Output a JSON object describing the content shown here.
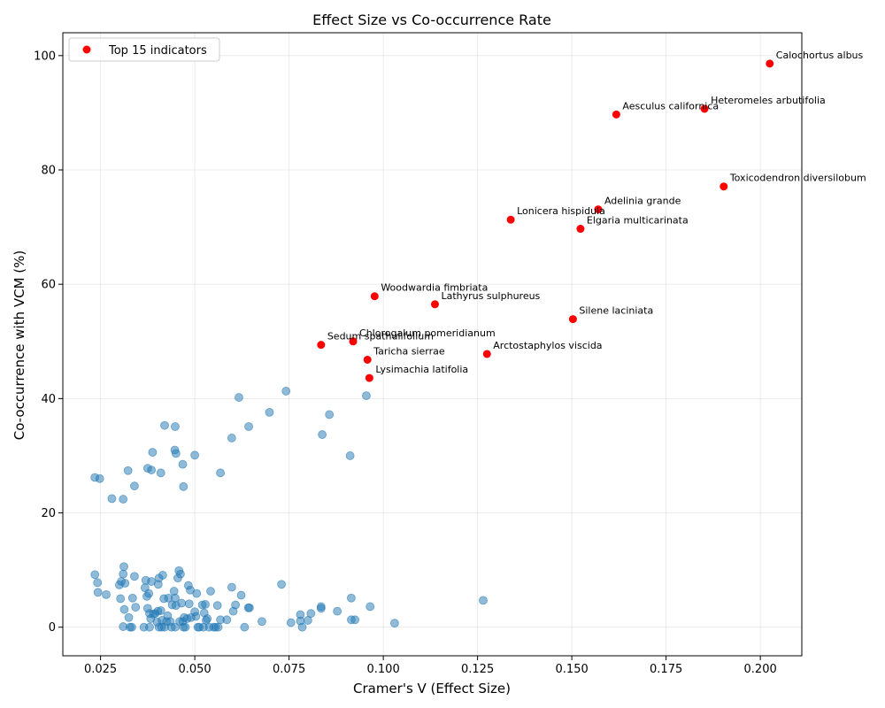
{
  "chart_data": {
    "type": "scatter",
    "title": "Effect Size vs Co-occurrence Rate",
    "xlabel": "Cramer's V (Effect Size)",
    "ylabel": "Co-occurrence with VCM (%)",
    "xlim": [
      0.015,
      0.211
    ],
    "ylim": [
      -5,
      104
    ],
    "xticks": [
      0.025,
      0.05,
      0.075,
      0.1,
      0.125,
      0.15,
      0.175,
      0.2
    ],
    "xtick_labels": [
      "0.025",
      "0.050",
      "0.075",
      "0.100",
      "0.125",
      "0.150",
      "0.175",
      "0.200"
    ],
    "yticks": [
      0,
      20,
      40,
      60,
      80,
      100
    ],
    "ytick_labels": [
      "0",
      "20",
      "40",
      "60",
      "80",
      "100"
    ],
    "grid": true,
    "legend": {
      "placement": "top-left",
      "entries": [
        "Top 15 indicators"
      ]
    },
    "colors": {
      "other": "#1f77b4",
      "top": "#ff0000"
    },
    "series": [
      {
        "name": "",
        "color": "#1f77b4",
        "points": [
          [
            0.0235,
            26.2
          ],
          [
            0.0248,
            26.0
          ],
          [
            0.028,
            22.5
          ],
          [
            0.031,
            22.4
          ],
          [
            0.0323,
            27.4
          ],
          [
            0.034,
            24.7
          ],
          [
            0.0375,
            27.8
          ],
          [
            0.0385,
            27.5
          ],
          [
            0.0388,
            30.6
          ],
          [
            0.041,
            27.0
          ],
          [
            0.042,
            35.3
          ],
          [
            0.0447,
            31.0
          ],
          [
            0.0448,
            35.1
          ],
          [
            0.045,
            30.4
          ],
          [
            0.0468,
            28.5
          ],
          [
            0.047,
            24.6
          ],
          [
            0.05,
            30.1
          ],
          [
            0.0568,
            27.0
          ],
          [
            0.0598,
            33.1
          ],
          [
            0.0617,
            40.2
          ],
          [
            0.0643,
            35.1
          ],
          [
            0.0698,
            37.6
          ],
          [
            0.0742,
            41.3
          ],
          [
            0.0838,
            33.7
          ],
          [
            0.0857,
            37.2
          ],
          [
            0.0912,
            30.0
          ],
          [
            0.0955,
            40.5
          ],
          [
            0.0235,
            9.2
          ],
          [
            0.0242,
            7.8
          ],
          [
            0.0243,
            6.1
          ],
          [
            0.0265,
            5.7
          ],
          [
            0.03,
            7.4
          ],
          [
            0.0303,
            5.0
          ],
          [
            0.0305,
            8.0
          ],
          [
            0.031,
            9.3
          ],
          [
            0.0312,
            10.6
          ],
          [
            0.0315,
            7.7
          ],
          [
            0.0313,
            3.1
          ],
          [
            0.031,
            0.1
          ],
          [
            0.0325,
            1.7
          ],
          [
            0.0328,
            0.0
          ],
          [
            0.0333,
            0.0
          ],
          [
            0.0335,
            5.1
          ],
          [
            0.034,
            8.9
          ],
          [
            0.0343,
            3.5
          ],
          [
            0.0365,
            0.0
          ],
          [
            0.0368,
            6.9
          ],
          [
            0.037,
            8.2
          ],
          [
            0.0373,
            5.4
          ],
          [
            0.0375,
            3.3
          ],
          [
            0.0378,
            5.9
          ],
          [
            0.038,
            2.4
          ],
          [
            0.038,
            0.0
          ],
          [
            0.0383,
            1.5
          ],
          [
            0.0385,
            8.0
          ],
          [
            0.039,
            2.3
          ],
          [
            0.0395,
            2.4
          ],
          [
            0.04,
            0.9
          ],
          [
            0.0402,
            2.8
          ],
          [
            0.0403,
            7.5
          ],
          [
            0.0405,
            8.6
          ],
          [
            0.0405,
            0.0
          ],
          [
            0.041,
            2.9
          ],
          [
            0.0412,
            0.0
          ],
          [
            0.0413,
            1.2
          ],
          [
            0.0415,
            9.1
          ],
          [
            0.0418,
            5.0
          ],
          [
            0.042,
            0.0
          ],
          [
            0.0425,
            1.0
          ],
          [
            0.0428,
            2.0
          ],
          [
            0.043,
            5.1
          ],
          [
            0.0435,
            1.0
          ],
          [
            0.0438,
            0.0
          ],
          [
            0.044,
            3.9
          ],
          [
            0.0445,
            6.3
          ],
          [
            0.0448,
            5.1
          ],
          [
            0.0448,
            0.0
          ],
          [
            0.045,
            3.8
          ],
          [
            0.0455,
            8.6
          ],
          [
            0.0458,
            9.9
          ],
          [
            0.046,
            1.0
          ],
          [
            0.0462,
            9.3
          ],
          [
            0.0465,
            4.2
          ],
          [
            0.0468,
            1.0
          ],
          [
            0.047,
            0.0
          ],
          [
            0.0472,
            1.7
          ],
          [
            0.0475,
            0.0
          ],
          [
            0.048,
            1.5
          ],
          [
            0.0483,
            7.3
          ],
          [
            0.0485,
            4.1
          ],
          [
            0.0488,
            6.5
          ],
          [
            0.049,
            1.7
          ],
          [
            0.05,
            2.7
          ],
          [
            0.0503,
            1.9
          ],
          [
            0.0505,
            5.9
          ],
          [
            0.0508,
            0.0
          ],
          [
            0.0512,
            0.0
          ],
          [
            0.052,
            3.9
          ],
          [
            0.0523,
            0.0
          ],
          [
            0.0525,
            2.5
          ],
          [
            0.0528,
            4.0
          ],
          [
            0.053,
            1.2
          ],
          [
            0.0533,
            1.5
          ],
          [
            0.0538,
            0.0
          ],
          [
            0.0542,
            6.3
          ],
          [
            0.055,
            0.0
          ],
          [
            0.0555,
            0.0
          ],
          [
            0.056,
            3.8
          ],
          [
            0.0562,
            0.0
          ],
          [
            0.0568,
            1.3
          ],
          [
            0.0585,
            1.3
          ],
          [
            0.0598,
            7.0
          ],
          [
            0.0602,
            2.8
          ],
          [
            0.0608,
            3.9
          ],
          [
            0.0623,
            5.6
          ],
          [
            0.0632,
            0.0
          ],
          [
            0.0642,
            3.4
          ],
          [
            0.0645,
            3.4
          ],
          [
            0.0678,
            1.0
          ],
          [
            0.073,
            7.5
          ],
          [
            0.0755,
            0.8
          ],
          [
            0.078,
            1.1
          ],
          [
            0.078,
            2.2
          ],
          [
            0.0785,
            0.0
          ],
          [
            0.08,
            1.2
          ],
          [
            0.0808,
            2.4
          ],
          [
            0.0835,
            3.6
          ],
          [
            0.0835,
            3.3
          ],
          [
            0.0878,
            2.8
          ],
          [
            0.0915,
            1.3
          ],
          [
            0.0915,
            5.1
          ],
          [
            0.0925,
            1.3
          ],
          [
            0.0965,
            3.6
          ],
          [
            0.103,
            0.7
          ],
          [
            0.1265,
            4.7
          ]
        ]
      },
      {
        "name": "Top 15 indicators",
        "color": "#ff0000",
        "points": [
          {
            "x": 0.2025,
            "y": 98.6,
            "label": "Calochortus albus"
          },
          {
            "x": 0.1852,
            "y": 90.7,
            "label": "Heteromeles arbutifolia"
          },
          {
            "x": 0.1618,
            "y": 89.7,
            "label": "Aesculus californica"
          },
          {
            "x": 0.1903,
            "y": 77.1,
            "label": "Toxicodendron diversilobum"
          },
          {
            "x": 0.157,
            "y": 73.1,
            "label": "Adelinia grande"
          },
          {
            "x": 0.1338,
            "y": 71.3,
            "label": "Lonicera hispidula"
          },
          {
            "x": 0.1523,
            "y": 69.7,
            "label": "Elgaria multicarinata"
          },
          {
            "x": 0.0977,
            "y": 57.9,
            "label": "Woodwardia fimbriata"
          },
          {
            "x": 0.1137,
            "y": 56.5,
            "label": "Lathyrus sulphureus"
          },
          {
            "x": 0.1503,
            "y": 53.9,
            "label": "Silene laciniata"
          },
          {
            "x": 0.092,
            "y": 50.0,
            "label": "Chlorogalum pomeridianum"
          },
          {
            "x": 0.0835,
            "y": 49.4,
            "label": "Sedum spathulifolium"
          },
          {
            "x": 0.1275,
            "y": 47.8,
            "label": "Arctostaphylos viscida"
          },
          {
            "x": 0.0958,
            "y": 46.8,
            "label": "Taricha sierrae"
          },
          {
            "x": 0.0963,
            "y": 43.6,
            "label": "Lysimachia latifolia"
          }
        ]
      }
    ]
  }
}
